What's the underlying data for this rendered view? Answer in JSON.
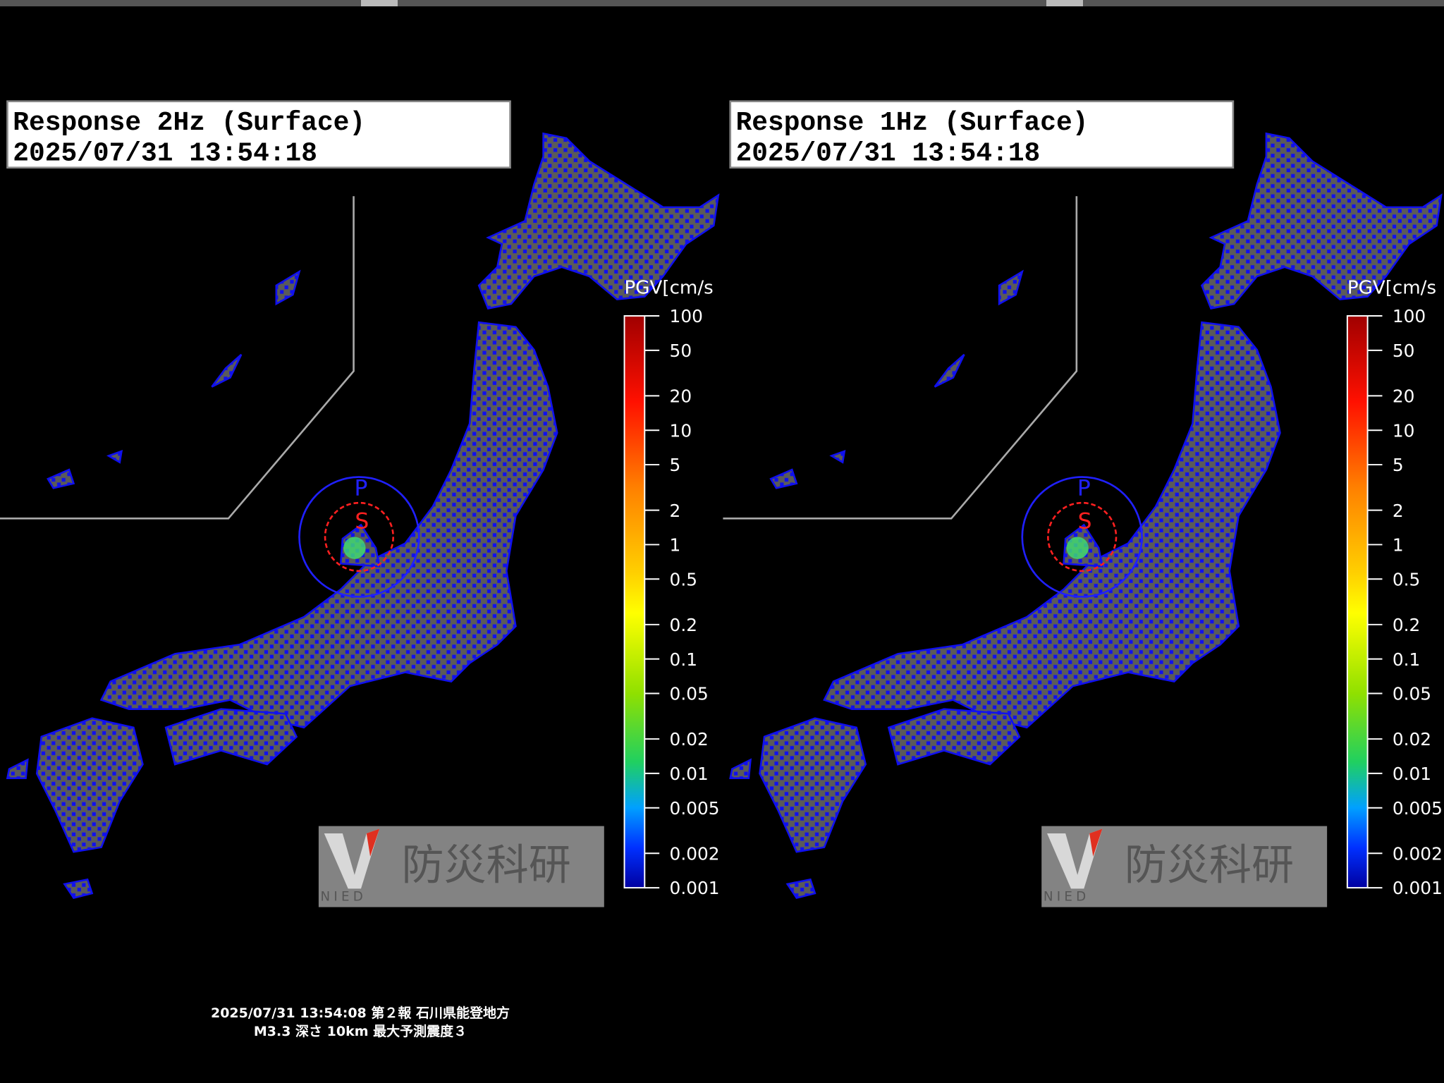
{
  "panels": [
    {
      "title": "Response 2Hz (Surface)",
      "timestamp": "2025/07/31 13:54:18",
      "colorbar": {
        "label": "PGV[cm/s",
        "scale": "log",
        "lim": [
          0.001,
          100
        ],
        "ticks": [
          100,
          50,
          20,
          10,
          5,
          2,
          1,
          0.5,
          0.2,
          0.1,
          0.05,
          0.02,
          0.01,
          0.005,
          0.002,
          0.001
        ]
      },
      "wave_labels": [
        "P",
        "S"
      ],
      "logo": {
        "text": "防災科研",
        "sub": "NIED"
      }
    },
    {
      "title": "Response 1Hz (Surface)",
      "timestamp": "2025/07/31 13:54:18",
      "colorbar": {
        "label": "PGV[cm/s",
        "scale": "log",
        "lim": [
          0.001,
          100
        ],
        "ticks": [
          100,
          50,
          20,
          10,
          5,
          2,
          1,
          0.5,
          0.2,
          0.1,
          0.05,
          0.02,
          0.01,
          0.005,
          0.002,
          0.001
        ]
      },
      "wave_labels": [
        "P",
        "S"
      ],
      "logo": {
        "text": "防災科研",
        "sub": "NIED"
      }
    }
  ],
  "footer": [
    "2025/07/31 13:54:08 第２報 石川県能登地方",
    "M3.3 深さ 10km 最大予測震度３"
  ]
}
